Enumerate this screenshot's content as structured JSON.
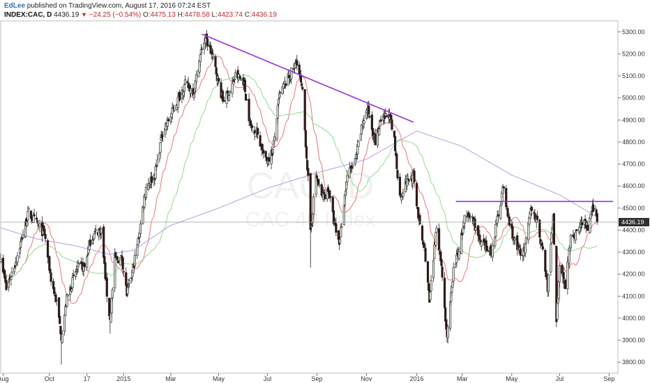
{
  "header": {
    "author": "EdLee",
    "published_text": "published on TradingView.com, August 17, 2016 07:24 EST",
    "symbol": "INDEX:CAC, D",
    "last": "4436.19",
    "change_arrow": "▼",
    "change": "−24.25 (−0.54%)",
    "open_label": "O:",
    "open": "4475.13",
    "high_label": "H:",
    "high": "4478.58",
    "low_label": "L:",
    "low": "4423.74",
    "close_label": "C:",
    "close": "4436.19"
  },
  "watermark": {
    "symbol": "CAC, D",
    "name": "CAC 40 Index"
  },
  "colors": {
    "background": "#ffffff",
    "up_candle": "#d9e4d4",
    "down_candle": "#3a1414",
    "ma_fast": "#e8777a",
    "ma_mid": "#8fdc8f",
    "ma_slow": "#b79ae0",
    "trendline": "#9b30d9",
    "price_tag": "#2e2e2e",
    "last_price_line": "#9e9e9e"
  },
  "chart_data": {
    "type": "candlestick",
    "title": "",
    "ylim": [
      3750,
      5350
    ],
    "y_ticks": [
      3800,
      3900,
      4000,
      4100,
      4200,
      4300,
      4400,
      4500,
      4600,
      4700,
      4800,
      4900,
      5000,
      5100,
      5200,
      5300
    ],
    "y_tick_labels": [
      "3800.00",
      "3900.00",
      "4000.00",
      "4100.00",
      "4200.00",
      "4300.00",
      "4400.00",
      "4500.00",
      "4600.00",
      "4700.00",
      "4800.00",
      "4900.00",
      "5000.00",
      "5100.00",
      "5200.00",
      "5300.00"
    ],
    "x_range": [
      "2014-08-01",
      "2016-09-12"
    ],
    "x_ticks": [
      {
        "date": "2014-08-04",
        "label": "Aug"
      },
      {
        "date": "2014-10-01",
        "label": "Oct"
      },
      {
        "date": "2014-11-17",
        "label": "17"
      },
      {
        "date": "2015-01-02",
        "label": "2015"
      },
      {
        "date": "2015-03-02",
        "label": "Mar"
      },
      {
        "date": "2015-05-01",
        "label": "May"
      },
      {
        "date": "2015-07-01",
        "label": "Jul"
      },
      {
        "date": "2015-09-01",
        "label": "Sep"
      },
      {
        "date": "2015-11-02",
        "label": "Nov"
      },
      {
        "date": "2016-01-04",
        "label": "2016"
      },
      {
        "date": "2016-03-01",
        "label": "Mar"
      },
      {
        "date": "2016-05-02",
        "label": "May"
      },
      {
        "date": "2016-07-01",
        "label": "Jul"
      },
      {
        "date": "2016-09-01",
        "label": "Sep"
      }
    ],
    "close_anchors": [
      [
        "2014-08-01",
        4290
      ],
      [
        "2014-08-08",
        4130
      ],
      [
        "2014-08-20",
        4260
      ],
      [
        "2014-09-05",
        4480
      ],
      [
        "2014-09-15",
        4430
      ],
      [
        "2014-09-25",
        4380
      ],
      [
        "2014-10-03",
        4180
      ],
      [
        "2014-10-10",
        4070
      ],
      [
        "2014-10-16",
        3920
      ],
      [
        "2014-10-23",
        4090
      ],
      [
        "2014-11-05",
        4230
      ],
      [
        "2014-11-14",
        4230
      ],
      [
        "2014-11-21",
        4350
      ],
      [
        "2014-11-28",
        4390
      ],
      [
        "2014-12-05",
        4400
      ],
      [
        "2014-12-12",
        4110
      ],
      [
        "2014-12-16",
        3990
      ],
      [
        "2014-12-22",
        4270
      ],
      [
        "2014-12-31",
        4270
      ],
      [
        "2015-01-06",
        4110
      ],
      [
        "2015-01-12",
        4190
      ],
      [
        "2015-01-20",
        4350
      ],
      [
        "2015-01-30",
        4600
      ],
      [
        "2015-02-10",
        4650
      ],
      [
        "2015-02-20",
        4850
      ],
      [
        "2015-03-02",
        4920
      ],
      [
        "2015-03-13",
        5010
      ],
      [
        "2015-03-20",
        5060
      ],
      [
        "2015-03-31",
        5030
      ],
      [
        "2015-04-10",
        5230
      ],
      [
        "2015-04-15",
        5270
      ],
      [
        "2015-04-24",
        5180
      ],
      [
        "2015-05-06",
        4990
      ],
      [
        "2015-05-14",
        5020
      ],
      [
        "2015-05-22",
        5100
      ],
      [
        "2015-06-01",
        5080
      ],
      [
        "2015-06-10",
        4870
      ],
      [
        "2015-06-18",
        4850
      ],
      [
        "2015-06-29",
        4710
      ],
      [
        "2015-07-08",
        4760
      ],
      [
        "2015-07-16",
        5010
      ],
      [
        "2015-07-24",
        5070
      ],
      [
        "2015-08-04",
        5140
      ],
      [
        "2015-08-07",
        5170
      ],
      [
        "2015-08-14",
        5020
      ],
      [
        "2015-08-21",
        4630
      ],
      [
        "2015-08-24",
        4380
      ],
      [
        "2015-08-31",
        4650
      ],
      [
        "2015-09-07",
        4550
      ],
      [
        "2015-09-16",
        4580
      ],
      [
        "2015-09-23",
        4420
      ],
      [
        "2015-09-29",
        4340
      ],
      [
        "2015-10-09",
        4650
      ],
      [
        "2015-10-19",
        4710
      ],
      [
        "2015-10-29",
        4900
      ],
      [
        "2015-11-04",
        4950
      ],
      [
        "2015-11-13",
        4800
      ],
      [
        "2015-11-20",
        4890
      ],
      [
        "2015-11-30",
        4930
      ],
      [
        "2015-12-02",
        4900
      ],
      [
        "2015-12-07",
        4800
      ],
      [
        "2015-12-14",
        4550
      ],
      [
        "2015-12-23",
        4630
      ],
      [
        "2015-12-31",
        4640
      ],
      [
        "2016-01-08",
        4410
      ],
      [
        "2016-01-15",
        4280
      ],
      [
        "2016-01-20",
        4070
      ],
      [
        "2016-01-29",
        4430
      ],
      [
        "2016-02-05",
        4200
      ],
      [
        "2016-02-11",
        3900
      ],
      [
        "2016-02-19",
        4220
      ],
      [
        "2016-02-26",
        4310
      ],
      [
        "2016-03-04",
        4450
      ],
      [
        "2016-03-14",
        4460
      ],
      [
        "2016-03-24",
        4330
      ],
      [
        "2016-04-01",
        4320
      ],
      [
        "2016-04-07",
        4300
      ],
      [
        "2016-04-14",
        4450
      ],
      [
        "2016-04-21",
        4590
      ],
      [
        "2016-04-29",
        4430
      ],
      [
        "2016-05-09",
        4310
      ],
      [
        "2016-05-18",
        4300
      ],
      [
        "2016-05-27",
        4510
      ],
      [
        "2016-06-03",
        4430
      ],
      [
        "2016-06-10",
        4300
      ],
      [
        "2016-06-16",
        4140
      ],
      [
        "2016-06-23",
        4470
      ],
      [
        "2016-06-27",
        3990
      ],
      [
        "2016-07-01",
        4250
      ],
      [
        "2016-07-08",
        4150
      ],
      [
        "2016-07-15",
        4380
      ],
      [
        "2016-07-22",
        4380
      ],
      [
        "2016-07-29",
        4440
      ],
      [
        "2016-08-05",
        4410
      ],
      [
        "2016-08-12",
        4500
      ],
      [
        "2016-08-15",
        4490
      ],
      [
        "2016-08-16",
        4460
      ],
      [
        "2016-08-17",
        4436
      ]
    ],
    "price_extremes": [
      [
        "2014-10-16",
        3790,
        "low"
      ],
      [
        "2014-12-16",
        3930,
        "low"
      ],
      [
        "2015-04-15",
        5280,
        "high"
      ],
      [
        "2015-08-24",
        4230,
        "low"
      ],
      [
        "2016-02-11",
        3890,
        "low"
      ],
      [
        "2016-04-21",
        4610,
        "high"
      ],
      [
        "2016-06-27",
        3960,
        "low"
      ]
    ],
    "moving_averages": [
      {
        "key": "ma20",
        "color": "#e8777a",
        "period": 20
      },
      {
        "key": "ma50",
        "color": "#8fdc8f",
        "period": 50
      },
      {
        "key": "ma200",
        "color": "#b79ae0",
        "period": 200
      }
    ],
    "ma_slow_anchors": [
      [
        "2014-08-01",
        4410
      ],
      [
        "2014-09-15",
        4360
      ],
      [
        "2014-11-01",
        4330
      ],
      [
        "2014-12-15",
        4290
      ],
      [
        "2015-01-15",
        4310
      ],
      [
        "2015-03-01",
        4420
      ],
      [
        "2015-05-01",
        4500
      ],
      [
        "2015-07-01",
        4590
      ],
      [
        "2015-09-01",
        4660
      ],
      [
        "2015-11-01",
        4720
      ],
      [
        "2016-01-04",
        4850
      ],
      [
        "2016-03-01",
        4780
      ],
      [
        "2016-05-02",
        4650
      ],
      [
        "2016-07-01",
        4560
      ],
      [
        "2016-08-17",
        4460
      ]
    ],
    "trendlines": [
      {
        "name": "downtrend",
        "from": [
          "2015-04-10",
          5290
        ],
        "to": [
          "2015-12-31",
          4890
        ]
      },
      {
        "name": "resistance",
        "from": [
          "2016-02-22",
          4530
        ],
        "to": [
          "2016-09-06",
          4530
        ]
      }
    ],
    "last_price": 4436.19,
    "last_price_label": "4436.19"
  }
}
